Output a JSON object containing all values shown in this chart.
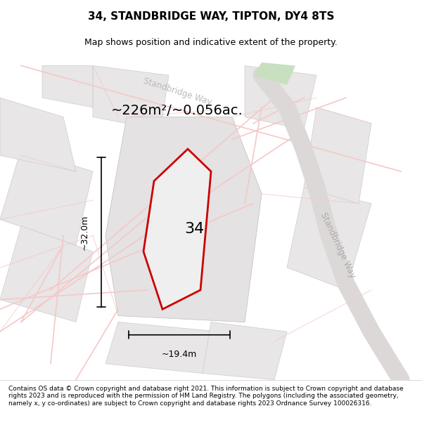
{
  "title": "34, STANDBRIDGE WAY, TIPTON, DY4 8TS",
  "subtitle": "Map shows position and indicative extent of the property.",
  "area_text": "~226m²/~0.056ac.",
  "width_text": "~19.4m",
  "height_text": "~32.0m",
  "number_label": "34",
  "footer_text": "Contains OS data © Crown copyright and database right 2021. This information is subject to Crown copyright and database rights 2023 and is reproduced with the permission of HM Land Registry. The polygons (including the associated geometry, namely x, y co-ordinates) are subject to Crown copyright and database rights 2023 Ordnance Survey 100026316.",
  "bg_color": "#f5f5f5",
  "map_bg": "#f0eeee",
  "road_color_light": "#f5c8c8",
  "road_color_dark": "#e8b8b8",
  "parcel_bg": "#e8e6e6",
  "highlight_fill": "#e8e8e8",
  "red_outline": "#cc0000",
  "standbridge_way_label": "Standbridge Way",
  "standbridge_way_top": "Standbridge Way"
}
